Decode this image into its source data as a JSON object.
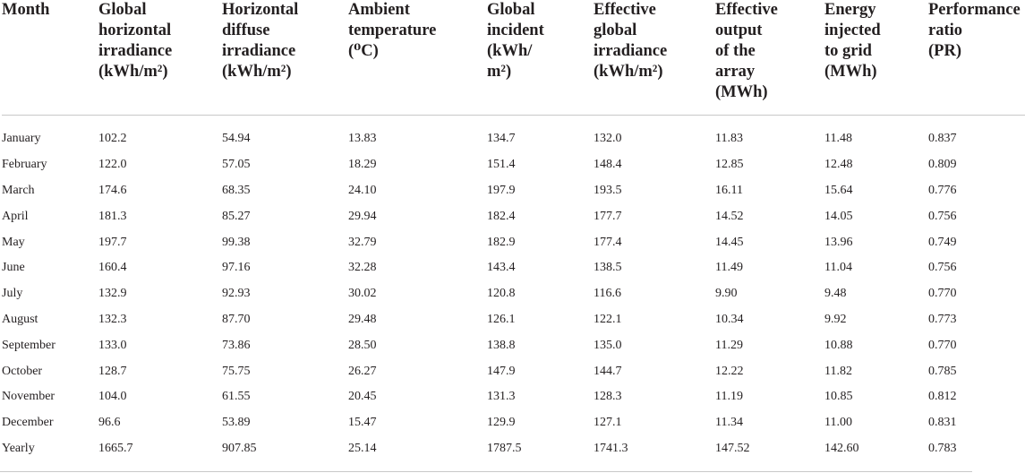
{
  "table": {
    "headers": [
      {
        "lines": [
          "Month"
        ]
      },
      {
        "lines": [
          "Global",
          "horizontal",
          "irradiance",
          "(kWh/m²)"
        ]
      },
      {
        "lines": [
          "Horizontal",
          "diffuse",
          "irradiance",
          "(kWh/m²)"
        ]
      },
      {
        "lines": [
          "Ambient",
          "temperature",
          "(⁰C)"
        ]
      },
      {
        "lines": [
          "Global",
          "incident",
          "(kWh/",
          "m²)"
        ]
      },
      {
        "lines": [
          "Effective",
          "global",
          "irradiance",
          "(kWh/m²)"
        ]
      },
      {
        "lines": [
          "Effective",
          "output",
          "of the",
          "array",
          "(MWh)"
        ]
      },
      {
        "lines": [
          "Energy",
          "injected",
          "to grid",
          "(MWh)"
        ]
      },
      {
        "lines": [
          "Performance",
          "ratio",
          "(PR)"
        ]
      }
    ],
    "rows": [
      [
        "January",
        "102.2",
        "54.94",
        "13.83",
        "134.7",
        "132.0",
        "11.83",
        "11.48",
        "0.837"
      ],
      [
        "February",
        "122.0",
        "57.05",
        "18.29",
        "151.4",
        "148.4",
        "12.85",
        "12.48",
        "0.809"
      ],
      [
        "March",
        "174.6",
        "68.35",
        "24.10",
        "197.9",
        "193.5",
        "16.11",
        "15.64",
        "0.776"
      ],
      [
        "April",
        "181.3",
        "85.27",
        "29.94",
        "182.4",
        "177.7",
        "14.52",
        "14.05",
        "0.756"
      ],
      [
        "May",
        "197.7",
        "99.38",
        "32.79",
        "182.9",
        "177.4",
        "14.45",
        "13.96",
        "0.749"
      ],
      [
        "June",
        "160.4",
        "97.16",
        "32.28",
        "143.4",
        "138.5",
        "11.49",
        "11.04",
        "0.756"
      ],
      [
        "July",
        "132.9",
        "92.93",
        "30.02",
        "120.8",
        "116.6",
        "9.90",
        "9.48",
        "0.770"
      ],
      [
        "August",
        "132.3",
        "87.70",
        "29.48",
        "126.1",
        "122.1",
        "10.34",
        "9.92",
        "0.773"
      ],
      [
        "September",
        "133.0",
        "73.86",
        "28.50",
        "138.8",
        "135.0",
        "11.29",
        "10.88",
        "0.770"
      ],
      [
        "October",
        "128.7",
        "75.75",
        "26.27",
        "147.9",
        "144.7",
        "12.22",
        "11.82",
        "0.785"
      ],
      [
        "November",
        "104.0",
        "61.55",
        "20.45",
        "131.3",
        "128.3",
        "11.19",
        "10.85",
        "0.812"
      ],
      [
        "December",
        "96.6",
        "53.89",
        "15.47",
        "129.9",
        "127.1",
        "11.34",
        "11.00",
        "0.831"
      ],
      [
        "Yearly",
        "1665.7",
        "907.85",
        "25.14",
        "1787.5",
        "1741.3",
        "147.52",
        "142.60",
        "0.783"
      ]
    ]
  }
}
